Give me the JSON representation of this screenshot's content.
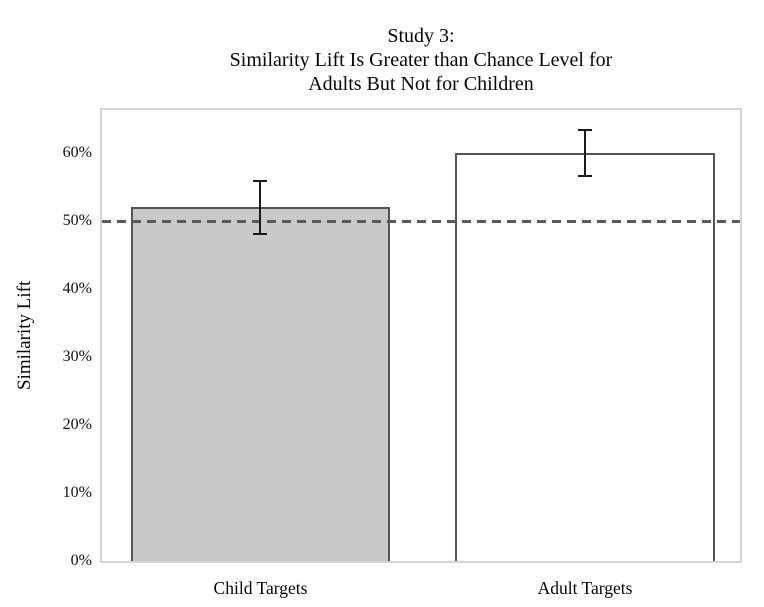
{
  "chart_data": {
    "type": "bar",
    "title_lines": [
      "Study 3:",
      "Similarity Lift Is Greater than Chance Level for",
      "Adults But Not for Children"
    ],
    "ylabel": "Similarity Lift",
    "xlabel": "",
    "categories": [
      "Child Targets",
      "Adult Targets"
    ],
    "values": [
      52,
      60
    ],
    "errors": [
      {
        "low": 48,
        "high": 56
      },
      {
        "low": 56.5,
        "high": 63.5
      }
    ],
    "reference_line": {
      "value": 50,
      "style": "dashed"
    },
    "ylim": [
      0,
      67
    ],
    "yticks": [
      0,
      10,
      20,
      30,
      40,
      50,
      60
    ],
    "ytick_labels": [
      "0%",
      "10%",
      "20%",
      "30%",
      "40%",
      "50%",
      "60%"
    ],
    "grid": false,
    "legend": "none",
    "styles": {
      "bar_fills": [
        "#c9c9c9",
        "#ffffff"
      ],
      "bar_border": "#545454",
      "error_color": "#1b1b1b",
      "reference_line_color": "#5a5a5a",
      "frame_color": "#d5d5d5",
      "background": "#ffffff"
    }
  }
}
